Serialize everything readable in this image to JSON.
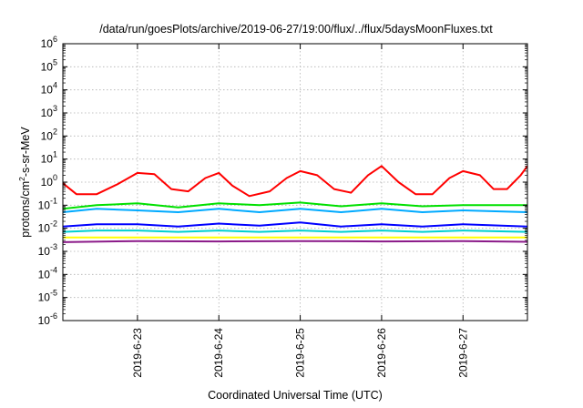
{
  "chart_data": {
    "type": "line",
    "title": "/data/run/goesPlots/archive/2019-06-27/19:00/flux/../flux/5daysMoonFluxes.txt",
    "xlabel": "Coordinated Universal Time (UTC)",
    "ylabel": {
      "pre": "protons/cm",
      "sup": "2",
      "post": "-s-sr-MeV"
    },
    "y_scale": "log",
    "ylim": [
      1e-06,
      1000000.0
    ],
    "y_tick_exponents": [
      -6,
      -5,
      -4,
      -3,
      -2,
      -1,
      0,
      1,
      2,
      3,
      4,
      5,
      6
    ],
    "y_tick_base": "10",
    "xlim": [
      "2019-06-22T02:00",
      "2019-06-27T19:00"
    ],
    "x_ticks": [
      {
        "x": "2019-06-23T00:00",
        "label": "2019-6-23"
      },
      {
        "x": "2019-06-24T00:00",
        "label": "2019-6-24"
      },
      {
        "x": "2019-06-25T00:00",
        "label": "2019-6-25"
      },
      {
        "x": "2019-06-26T00:00",
        "label": "2019-6-26"
      },
      {
        "x": "2019-06-27T00:00",
        "label": "2019-6-27"
      }
    ],
    "grid": true,
    "series": [
      {
        "color": "#ff0000",
        "points": [
          [
            "2019-06-22T02:00",
            0.9
          ],
          [
            "2019-06-22T06:00",
            0.3
          ],
          [
            "2019-06-22T12:00",
            0.3
          ],
          [
            "2019-06-22T18:00",
            0.8
          ],
          [
            "2019-06-23T00:00",
            2.5
          ],
          [
            "2019-06-23T05:00",
            2.2
          ],
          [
            "2019-06-23T10:00",
            0.5
          ],
          [
            "2019-06-23T15:00",
            0.4
          ],
          [
            "2019-06-23T20:00",
            1.5
          ],
          [
            "2019-06-24T00:00",
            2.5
          ],
          [
            "2019-06-24T04:00",
            0.7
          ],
          [
            "2019-06-24T09:00",
            0.25
          ],
          [
            "2019-06-24T15:00",
            0.4
          ],
          [
            "2019-06-24T20:00",
            1.5
          ],
          [
            "2019-06-25T00:00",
            3.0
          ],
          [
            "2019-06-25T05:00",
            2.0
          ],
          [
            "2019-06-25T10:00",
            0.5
          ],
          [
            "2019-06-25T15:00",
            0.35
          ],
          [
            "2019-06-25T20:00",
            2.0
          ],
          [
            "2019-06-26T00:00",
            5.0
          ],
          [
            "2019-06-26T05:00",
            1.0
          ],
          [
            "2019-06-26T10:00",
            0.3
          ],
          [
            "2019-06-26T15:00",
            0.3
          ],
          [
            "2019-06-26T20:00",
            1.5
          ],
          [
            "2019-06-27T00:00",
            3.0
          ],
          [
            "2019-06-27T05:00",
            2.0
          ],
          [
            "2019-06-27T09:00",
            0.5
          ],
          [
            "2019-06-27T13:00",
            0.5
          ],
          [
            "2019-06-27T17:00",
            2.0
          ],
          [
            "2019-06-27T19:00",
            5.0
          ]
        ]
      },
      {
        "color": "#00e000",
        "points": [
          [
            "2019-06-22T02:00",
            0.07
          ],
          [
            "2019-06-22T12:00",
            0.1
          ],
          [
            "2019-06-23T00:00",
            0.12
          ],
          [
            "2019-06-23T12:00",
            0.08
          ],
          [
            "2019-06-24T00:00",
            0.12
          ],
          [
            "2019-06-24T12:00",
            0.1
          ],
          [
            "2019-06-25T00:00",
            0.13
          ],
          [
            "2019-06-25T12:00",
            0.09
          ],
          [
            "2019-06-26T00:00",
            0.12
          ],
          [
            "2019-06-26T12:00",
            0.09
          ],
          [
            "2019-06-27T00:00",
            0.1
          ],
          [
            "2019-06-27T19:00",
            0.1
          ]
        ]
      },
      {
        "color": "#00aaff",
        "points": [
          [
            "2019-06-22T02:00",
            0.05
          ],
          [
            "2019-06-22T12:00",
            0.07
          ],
          [
            "2019-06-23T00:00",
            0.06
          ],
          [
            "2019-06-23T12:00",
            0.05
          ],
          [
            "2019-06-24T00:00",
            0.07
          ],
          [
            "2019-06-24T12:00",
            0.05
          ],
          [
            "2019-06-25T00:00",
            0.07
          ],
          [
            "2019-06-25T12:00",
            0.05
          ],
          [
            "2019-06-26T00:00",
            0.07
          ],
          [
            "2019-06-26T12:00",
            0.05
          ],
          [
            "2019-06-27T00:00",
            0.06
          ],
          [
            "2019-06-27T19:00",
            0.05
          ]
        ]
      },
      {
        "color": "#0000ff",
        "points": [
          [
            "2019-06-22T02:00",
            0.012
          ],
          [
            "2019-06-22T12:00",
            0.015
          ],
          [
            "2019-06-23T00:00",
            0.015
          ],
          [
            "2019-06-23T12:00",
            0.012
          ],
          [
            "2019-06-24T00:00",
            0.016
          ],
          [
            "2019-06-24T12:00",
            0.013
          ],
          [
            "2019-06-25T00:00",
            0.018
          ],
          [
            "2019-06-25T12:00",
            0.012
          ],
          [
            "2019-06-26T00:00",
            0.015
          ],
          [
            "2019-06-26T12:00",
            0.012
          ],
          [
            "2019-06-27T00:00",
            0.015
          ],
          [
            "2019-06-27T19:00",
            0.012
          ]
        ]
      },
      {
        "color": "#00d0d0",
        "points": [
          [
            "2019-06-22T02:00",
            0.007
          ],
          [
            "2019-06-22T12:00",
            0.008
          ],
          [
            "2019-06-23T00:00",
            0.008
          ],
          [
            "2019-06-23T12:00",
            0.007
          ],
          [
            "2019-06-24T00:00",
            0.008
          ],
          [
            "2019-06-24T12:00",
            0.007
          ],
          [
            "2019-06-25T00:00",
            0.008
          ],
          [
            "2019-06-25T12:00",
            0.007
          ],
          [
            "2019-06-26T00:00",
            0.008
          ],
          [
            "2019-06-26T12:00",
            0.007
          ],
          [
            "2019-06-27T00:00",
            0.008
          ],
          [
            "2019-06-27T19:00",
            0.007
          ]
        ]
      },
      {
        "color": "#ffff00",
        "points": [
          [
            "2019-06-22T02:00",
            0.004
          ],
          [
            "2019-06-23T00:00",
            0.004
          ],
          [
            "2019-06-24T00:00",
            0.004
          ],
          [
            "2019-06-25T00:00",
            0.004
          ],
          [
            "2019-06-26T00:00",
            0.004
          ],
          [
            "2019-06-27T00:00",
            0.004
          ],
          [
            "2019-06-27T19:00",
            0.004
          ]
        ]
      },
      {
        "color": "#8b1a89",
        "points": [
          [
            "2019-06-22T02:00",
            0.0025
          ],
          [
            "2019-06-23T00:00",
            0.0028
          ],
          [
            "2019-06-24T00:00",
            0.0027
          ],
          [
            "2019-06-25T00:00",
            0.0028
          ],
          [
            "2019-06-26T00:00",
            0.0027
          ],
          [
            "2019-06-27T00:00",
            0.0028
          ],
          [
            "2019-06-27T19:00",
            0.0026
          ]
        ]
      }
    ]
  }
}
